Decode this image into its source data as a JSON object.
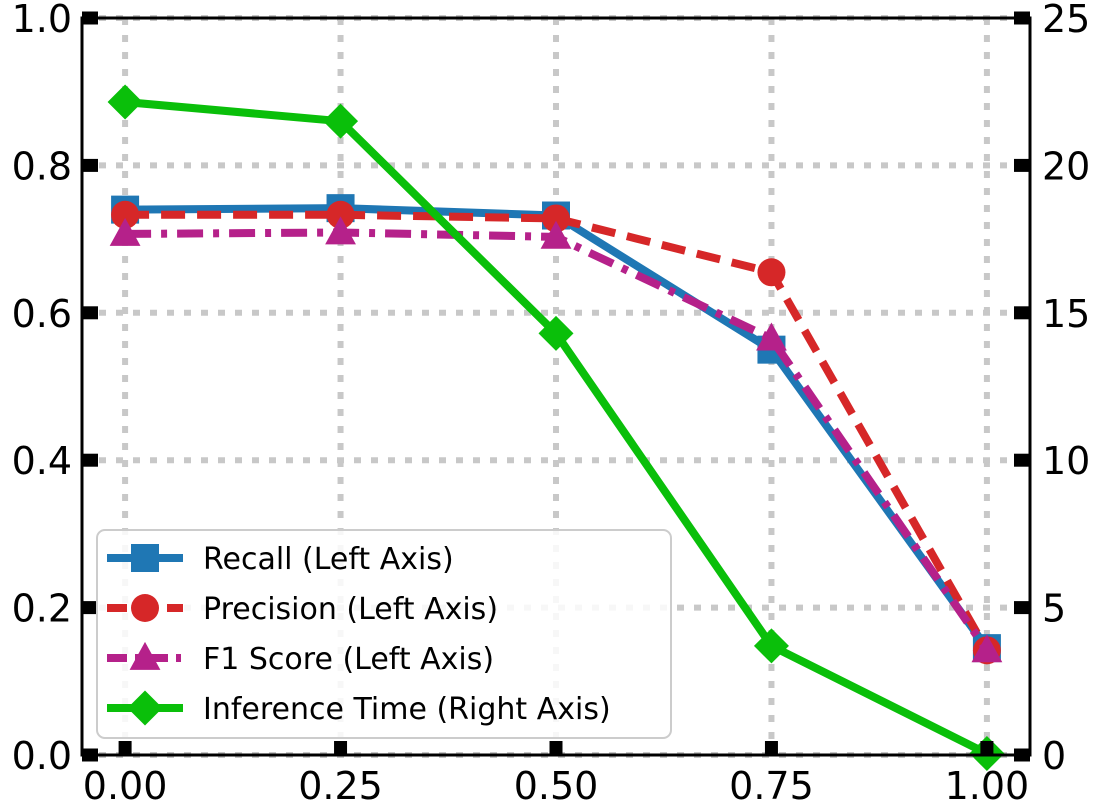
{
  "chart_data": {
    "type": "line",
    "title": "",
    "xlabel": "",
    "ylabel_left": "",
    "ylabel_right": "",
    "x": [
      0.0,
      0.25,
      0.5,
      0.75,
      1.0
    ],
    "x_tick_labels": [
      "0.00",
      "0.25",
      "0.50",
      "0.75",
      "1.00"
    ],
    "xlim": [
      -0.05,
      1.05
    ],
    "ylim_left": [
      0.0,
      1.0
    ],
    "ylim_right": [
      0,
      25
    ],
    "y_left_tick_labels": [
      "0.0",
      "0.2",
      "0.4",
      "0.6",
      "0.8",
      "1.0"
    ],
    "y_left_ticks": [
      0.0,
      0.2,
      0.4,
      0.6,
      0.8,
      1.0
    ],
    "y_right_tick_labels": [
      "0",
      "5",
      "10",
      "15",
      "20",
      "25"
    ],
    "y_right_ticks": [
      0,
      5,
      10,
      15,
      20,
      25
    ],
    "grid": true,
    "legend_position": "bottom-left",
    "series": [
      {
        "name": "Recall (Left Axis)",
        "axis": "left",
        "marker": "square",
        "dash": "solid",
        "color": "#1f77b4",
        "values": [
          0.74,
          0.742,
          0.732,
          0.55,
          0.145
        ]
      },
      {
        "name": "Precision (Left Axis)",
        "axis": "left",
        "marker": "circle",
        "dash": "dashed",
        "color": "#d62728",
        "values": [
          0.733,
          0.733,
          0.728,
          0.655,
          0.142
        ]
      },
      {
        "name": "F1 Score (Left Axis)",
        "axis": "left",
        "marker": "triangle",
        "dash": "dashdot",
        "color": "#b5218a",
        "values": [
          0.707,
          0.709,
          0.703,
          0.565,
          0.142
        ]
      },
      {
        "name": "Inference Time (Right Axis)",
        "axis": "right",
        "marker": "diamond",
        "dash": "solid",
        "color": "#0abf0a",
        "values": [
          22.15,
          21.5,
          14.3,
          3.7,
          0.05
        ]
      }
    ]
  }
}
